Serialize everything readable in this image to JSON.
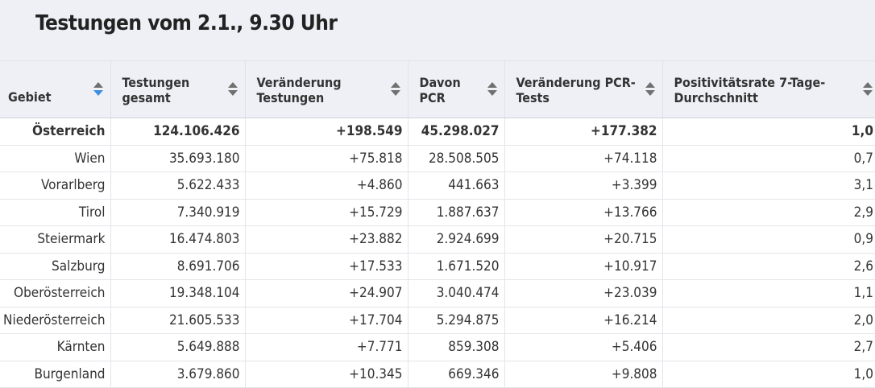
{
  "title": "Testungen vom 2.1., 9.30 Uhr",
  "colors": {
    "header_bg": "#eef0f6",
    "sort_active": "#3d8ee0",
    "sort_inactive": "#707070"
  },
  "columns": [
    {
      "label": "Gebiet",
      "sort_icon": "sort-icon-active"
    },
    {
      "label": "Testungen gesamt",
      "sort_icon": "sort-icon"
    },
    {
      "label": "Veränderung Testungen",
      "sort_icon": "sort-icon"
    },
    {
      "label": "Davon PCR",
      "sort_icon": "sort-icon"
    },
    {
      "label": "Veränderung PCR-Tests",
      "sort_icon": "sort-icon"
    },
    {
      "label": "Positivitätsrate 7-Tage-Durchschnitt",
      "sort_icon": "sort-icon"
    }
  ],
  "rows": [
    [
      "Österreich",
      "124.106.426",
      "+198.549",
      "45.298.027",
      "+177.382",
      "1,0"
    ],
    [
      "Wien",
      "35.693.180",
      "+75.818",
      "28.508.505",
      "+74.118",
      "0,7"
    ],
    [
      "Vorarlberg",
      "5.622.433",
      "+4.860",
      "441.663",
      "+3.399",
      "3,1"
    ],
    [
      "Tirol",
      "7.340.919",
      "+15.729",
      "1.887.637",
      "+13.766",
      "2,9"
    ],
    [
      "Steiermark",
      "16.474.803",
      "+23.882",
      "2.924.699",
      "+20.715",
      "0,9"
    ],
    [
      "Salzburg",
      "8.691.706",
      "+17.533",
      "1.671.520",
      "+10.917",
      "2,6"
    ],
    [
      "Oberösterreich",
      "19.348.104",
      "+24.907",
      "3.040.474",
      "+23.039",
      "1,1"
    ],
    [
      "Niederösterreich",
      "21.605.533",
      "+17.704",
      "5.294.875",
      "+16.214",
      "2,0"
    ],
    [
      "Kärnten",
      "5.649.888",
      "+7.771",
      "859.308",
      "+5.406",
      "2,7"
    ],
    [
      "Burgenland",
      "3.679.860",
      "+10.345",
      "669.346",
      "+9.808",
      "1,0"
    ]
  ]
}
